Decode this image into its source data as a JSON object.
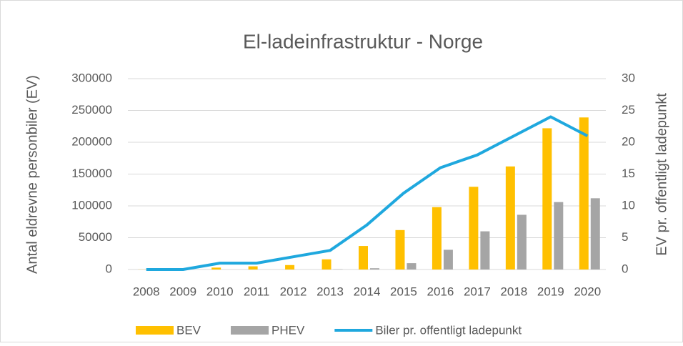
{
  "chart_data": {
    "type": "bar_line",
    "title": "El-ladeinfrastruktur - Norge",
    "y_label": "Antal eldrevne personbiler  (EV)",
    "y2_label": "EV pr. offentligt ladepunkt",
    "categories": [
      "2008",
      "2009",
      "2010",
      "2011",
      "2012",
      "2013",
      "2014",
      "2015",
      "2016",
      "2017",
      "2018",
      "2019",
      "2020"
    ],
    "series": [
      {
        "name": "BEV",
        "type": "bar",
        "color": "#ffc000",
        "values": [
          200,
          400,
          3000,
          5000,
          7000,
          16000,
          37000,
          62000,
          98000,
          130000,
          162000,
          222000,
          239000
        ]
      },
      {
        "name": "PHEV",
        "type": "bar",
        "color": "#a5a5a5",
        "values": [
          0,
          0,
          0,
          0,
          0,
          500,
          2000,
          10000,
          31000,
          60000,
          86000,
          106000,
          112000
        ]
      },
      {
        "name": "Biler pr. offentligt ladepunkt",
        "type": "line",
        "axis": "y2",
        "color": "#1fa8de",
        "values": [
          0,
          0,
          1,
          1,
          2,
          3,
          7,
          12,
          16,
          18,
          21,
          24,
          21
        ]
      }
    ],
    "ylim": [
      0,
      300000
    ],
    "yticks": [
      0,
      50000,
      100000,
      150000,
      200000,
      250000,
      300000
    ],
    "y2lim": [
      0,
      30
    ],
    "y2ticks": [
      0,
      5,
      10,
      15,
      20,
      25,
      30
    ],
    "grid": true,
    "legend": "bottom"
  }
}
